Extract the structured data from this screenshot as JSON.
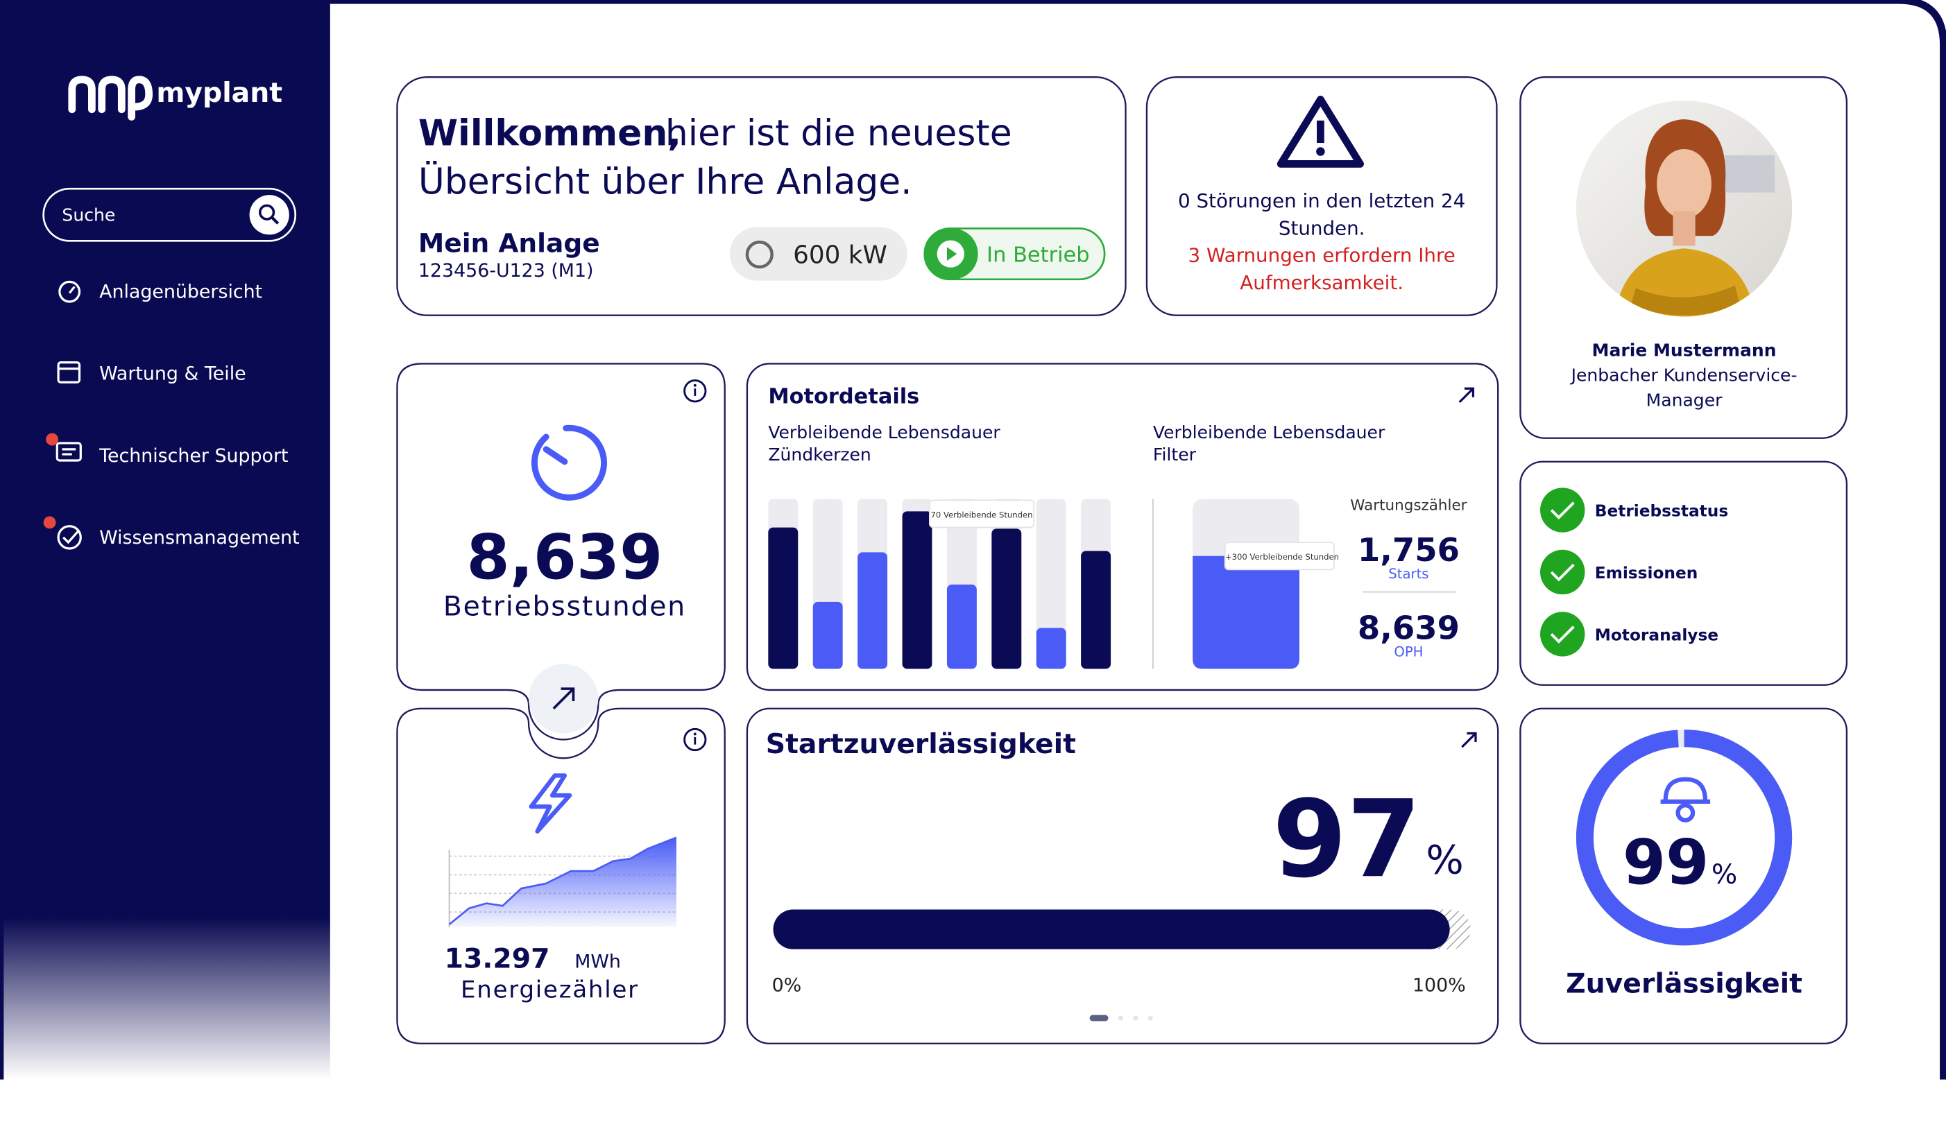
{
  "sidebar": {
    "logo": "myplant",
    "search_placeholder": "Suche",
    "nav": [
      "Anlagenübersicht",
      "Wartung & Teile",
      "Technischer Support",
      "Wissensmanagement"
    ]
  },
  "welcome": {
    "greeting": "Willkommen,",
    "headline_lines": [
      "hier ist die neueste",
      "Übersicht über Ihre Anlage."
    ],
    "plant_name": "Mein Anlage",
    "plant_id": "123456-U123 (M1)",
    "power": "600 kW",
    "status": "In Betrieb"
  },
  "alerts": {
    "disturbance_lines": [
      "0 Störungen in den letzten 24",
      "Stunden."
    ],
    "warning_lines": [
      "3 Warnungen erfordern Ihre",
      "Aufmerksamkeit."
    ]
  },
  "contact": {
    "name": "Marie Mustermann",
    "role_lines": [
      "Jenbacher Kundenservice-",
      "Manager"
    ]
  },
  "operating_hours": {
    "value": "8,639",
    "label": "Betriebsstunden"
  },
  "energy": {
    "value": "13.297",
    "unit": "MWh",
    "label": "Energiezähler"
  },
  "motor_details": {
    "title": "Motordetails",
    "spark_plug_lines": [
      "Verbleibende Lebensdauer",
      "Zündkerzen"
    ],
    "spark_plug_tooltip": "70 Verbleibende Stunden",
    "filter_lines": [
      "Verbleibende Lebensdauer",
      "Filter"
    ],
    "filter_tooltip": "+300 Verbleibende Stunden",
    "counter_title": "Wartungszähler",
    "starts_value": "1,756",
    "starts_label": "Starts",
    "oph_value": "8,639",
    "oph_label": "OPH"
  },
  "start_reliability": {
    "title": "Startzuverlässigkeit",
    "value": 97,
    "unit": "%",
    "min_label": "0%",
    "max_label": "100%"
  },
  "status_checks": [
    "Betriebsstatus",
    "Emissionen",
    "Motoranalyse"
  ],
  "reliability": {
    "value": 99,
    "unit": "%",
    "label": "Zuverlässigkeit"
  }
}
